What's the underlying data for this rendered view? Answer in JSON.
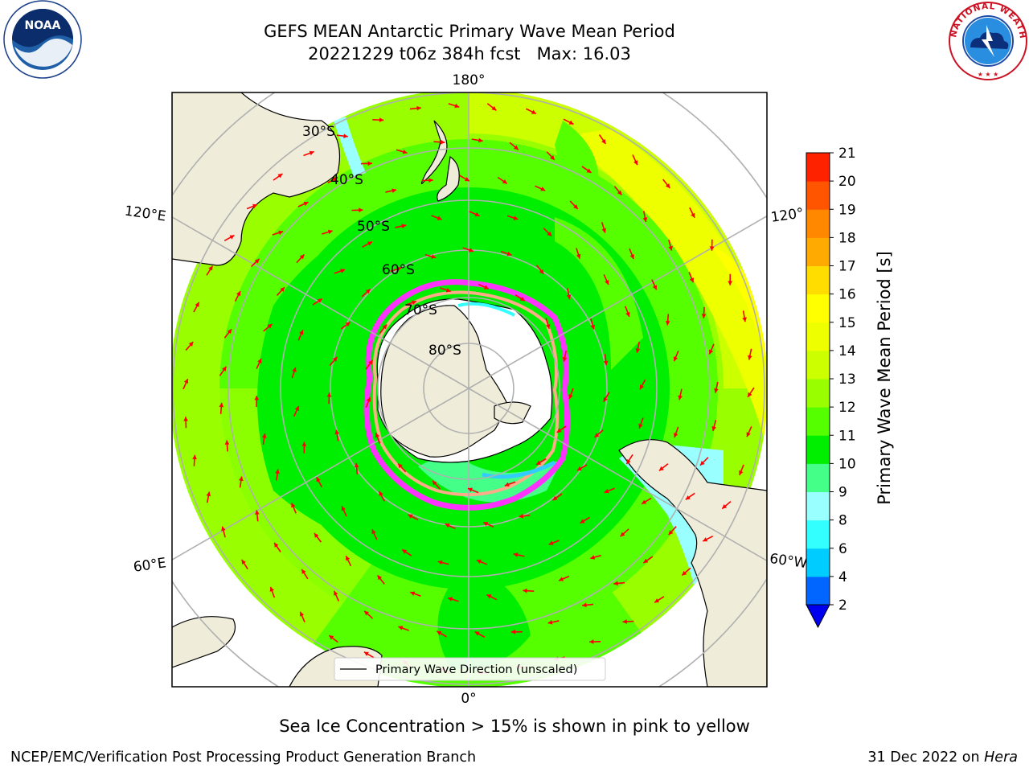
{
  "title": {
    "line1": "GEFS MEAN Antarctic Primary Wave Mean Period",
    "line2": "20221229 t06z 384h fcst   Max: 16.03"
  },
  "map": {
    "projection": "south-polar-stereographic",
    "lat_labels": [
      "30°S",
      "40°S",
      "50°S",
      "60°S",
      "70°S",
      "80°S"
    ],
    "lon_labels": {
      "top": "180°",
      "bottom": "0°",
      "left_upper": "120°E",
      "left_lower": "60°E",
      "right_upper": "120°",
      "right_lower": "60°W"
    },
    "legend_text": "Primary Wave Direction (unscaled)",
    "arrow_color": "#ff0000",
    "land_color": "#efedd9",
    "ice_edge_color": "#ff33ff"
  },
  "colorbar": {
    "label": "Primary Wave Mean Period [s]",
    "ticks": [
      "2",
      "4",
      "6",
      "8",
      "9",
      "10",
      "11",
      "12",
      "13",
      "14",
      "15",
      "16",
      "17",
      "18",
      "19",
      "20",
      "21"
    ],
    "colors": [
      "#0066ff",
      "#00ccff",
      "#33ffff",
      "#99ffff",
      "#44ff88",
      "#00ee00",
      "#55ff00",
      "#99ff00",
      "#ccff00",
      "#eeff00",
      "#ffff00",
      "#ffdd00",
      "#ffaa00",
      "#ff8800",
      "#ff5500",
      "#ff2200"
    ],
    "extend_color": "#0000ee"
  },
  "caption": "Sea Ice Concentration > 15% is shown in pink to yellow",
  "footer": {
    "left": "NCEP/EMC/Verification Post Processing Product Generation Branch",
    "right_date": "31 Dec 2022 on ",
    "right_host": "Hera"
  },
  "logos": {
    "noaa_text": "NOAA",
    "nws_ring_text": "NATIONAL WEATHER SERVICE"
  }
}
